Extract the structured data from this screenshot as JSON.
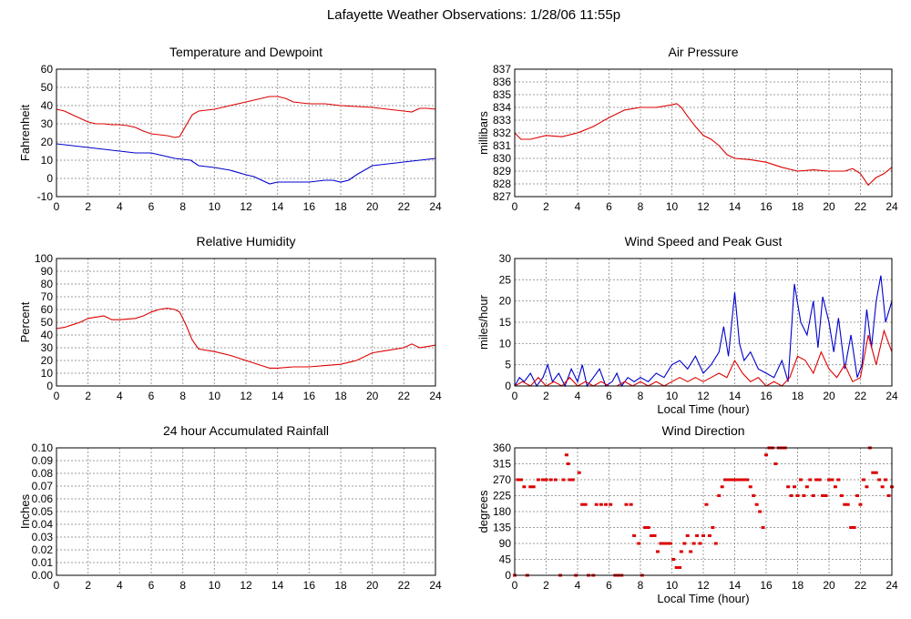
{
  "page": {
    "title": "Lafayette Weather Observations: 1/28/06 11:55p"
  },
  "colors": {
    "grid": "#9e9e9e",
    "red": "#dd0000",
    "blue": "#0000cc",
    "frame": "#000000"
  },
  "chart_data": [
    {
      "id": "temp",
      "type": "line",
      "title": "Temperature and Dewpoint",
      "xlabel": "",
      "ylabel": "Fahrenheit",
      "xlim": [
        0,
        24
      ],
      "ylim": [
        -10,
        60
      ],
      "xticks": [
        0,
        2,
        4,
        6,
        8,
        10,
        12,
        14,
        16,
        18,
        20,
        22,
        24
      ],
      "yticks": [
        -10,
        0,
        10,
        20,
        30,
        40,
        50,
        60
      ],
      "grid": true,
      "series": [
        {
          "color": "red",
          "x": [
            0,
            0.5,
            1,
            1.5,
            2,
            2.5,
            3,
            3.5,
            4,
            4.5,
            5,
            5.5,
            6,
            6.5,
            7,
            7.5,
            7.8,
            8.2,
            8.6,
            9,
            9.5,
            10,
            11,
            12,
            13,
            13.5,
            14,
            14.5,
            15,
            16,
            17,
            18,
            19,
            20,
            21,
            22,
            22.5,
            23,
            23.5,
            24
          ],
          "y": [
            38,
            37,
            35,
            33,
            31,
            30,
            30,
            29.5,
            29.5,
            29,
            28,
            26,
            24.5,
            24,
            23.5,
            22.5,
            23,
            29,
            35,
            37,
            37.5,
            38,
            40,
            42,
            44,
            45,
            45,
            44,
            42,
            41,
            41,
            40,
            39.5,
            39,
            38,
            37,
            36.5,
            38.5,
            38.5,
            38
          ]
        },
        {
          "color": "blue",
          "x": [
            0,
            1,
            2,
            3,
            4,
            5,
            6,
            7,
            7.5,
            8,
            8.5,
            9,
            10,
            11,
            12,
            12.5,
            13,
            13.5,
            14,
            15,
            16,
            17,
            17.5,
            18,
            18.5,
            19,
            20,
            21,
            22,
            23,
            24
          ],
          "y": [
            19,
            18,
            17,
            16,
            15,
            14,
            14,
            12,
            11,
            10.5,
            10,
            7,
            6,
            4.5,
            2,
            1,
            -1,
            -3,
            -2,
            -2,
            -2,
            -1,
            -1,
            -2,
            -1,
            2,
            7,
            8,
            9,
            10,
            11
          ]
        }
      ]
    },
    {
      "id": "pressure",
      "type": "line",
      "title": "Air Pressure",
      "xlabel": "",
      "ylabel": "millibars",
      "xlim": [
        0,
        24
      ],
      "ylim": [
        827,
        837
      ],
      "xticks": [
        0,
        2,
        4,
        6,
        8,
        10,
        12,
        14,
        16,
        18,
        20,
        22,
        24
      ],
      "yticks": [
        827,
        828,
        829,
        830,
        831,
        832,
        833,
        834,
        835,
        836,
        837
      ],
      "grid": true,
      "series": [
        {
          "color": "red",
          "x": [
            0,
            0.4,
            1,
            2,
            3,
            4,
            5,
            6,
            7,
            8,
            9,
            10,
            10.3,
            10.6,
            11,
            11.5,
            12,
            12.5,
            13,
            13.5,
            14,
            15,
            16,
            17,
            18,
            19,
            20,
            21,
            21.5,
            22,
            22.5,
            23,
            23.5,
            24
          ],
          "y": [
            832,
            831.5,
            831.5,
            831.8,
            831.7,
            832,
            832.5,
            833.2,
            833.8,
            834,
            834,
            834.2,
            834.3,
            834,
            833.3,
            832.5,
            831.8,
            831.5,
            831,
            830.3,
            830,
            829.9,
            829.7,
            829.3,
            829,
            829.1,
            829,
            829,
            829.2,
            828.8,
            827.9,
            828.5,
            828.8,
            829.3
          ]
        }
      ]
    },
    {
      "id": "humidity",
      "type": "line",
      "title": "Relative Humidity",
      "xlabel": "",
      "ylabel": "Percent",
      "xlim": [
        0,
        24
      ],
      "ylim": [
        0,
        100
      ],
      "xticks": [
        0,
        2,
        4,
        6,
        8,
        10,
        12,
        14,
        16,
        18,
        20,
        22,
        24
      ],
      "yticks": [
        0,
        10,
        20,
        30,
        40,
        50,
        60,
        70,
        80,
        90,
        100
      ],
      "grid": true,
      "series": [
        {
          "color": "red",
          "x": [
            0,
            0.5,
            1,
            1.5,
            2,
            2.5,
            3,
            3.5,
            4,
            5,
            5.5,
            6,
            6.5,
            7,
            7.5,
            7.8,
            8.2,
            8.6,
            9,
            10,
            11,
            12,
            13,
            13.5,
            14,
            15,
            16,
            17,
            18,
            19,
            20,
            21,
            22,
            22.5,
            23,
            24
          ],
          "y": [
            45,
            46,
            48,
            50,
            53,
            54,
            55,
            52,
            52,
            53,
            55,
            58,
            60,
            61,
            60,
            58,
            48,
            36,
            29,
            27,
            24,
            20,
            16,
            14,
            14,
            15,
            15,
            16,
            17,
            20,
            26,
            28,
            30,
            33,
            30,
            32
          ]
        }
      ]
    },
    {
      "id": "wind",
      "type": "line",
      "title": "Wind Speed and Peak Gust",
      "xlabel": "Local Time (hour)",
      "ylabel": "miles/hour",
      "xlim": [
        0,
        24
      ],
      "ylim": [
        0,
        30
      ],
      "xticks": [
        0,
        2,
        4,
        6,
        8,
        10,
        12,
        14,
        16,
        18,
        20,
        22,
        24
      ],
      "yticks": [
        0,
        5,
        10,
        15,
        20,
        25,
        30
      ],
      "grid": true,
      "series": [
        {
          "color": "blue",
          "x": [
            0,
            0.3,
            0.6,
            1,
            1.4,
            1.8,
            2.1,
            2.4,
            2.8,
            3.2,
            3.6,
            4,
            4.3,
            4.6,
            5,
            5.4,
            5.8,
            6.2,
            6.5,
            6.8,
            7.2,
            7.6,
            8,
            8.5,
            9,
            9.5,
            10,
            10.5,
            11,
            11.5,
            12,
            12.5,
            13,
            13.3,
            13.6,
            14,
            14.3,
            14.6,
            15,
            15.5,
            16,
            16.5,
            17,
            17.4,
            17.8,
            18.2,
            18.6,
            19,
            19.3,
            19.6,
            20,
            20.3,
            20.6,
            21,
            21.4,
            21.8,
            22.1,
            22.4,
            22.7,
            23,
            23.3,
            23.6,
            24
          ],
          "y": [
            0,
            2,
            1,
            3,
            0,
            2,
            5,
            1,
            3,
            0,
            4,
            1,
            5,
            0,
            2,
            4,
            0,
            1,
            3,
            0,
            2,
            1,
            2,
            1,
            3,
            2,
            5,
            6,
            4,
            7,
            3,
            5,
            8,
            14,
            7,
            22,
            10,
            6,
            8,
            4,
            3,
            2,
            6,
            1,
            24,
            15,
            12,
            20,
            9,
            21,
            15,
            8,
            16,
            4,
            12,
            2,
            5,
            18,
            9,
            20,
            26,
            15,
            20
          ]
        },
        {
          "color": "red",
          "x": [
            0,
            0.5,
            1,
            1.5,
            2,
            2.5,
            3,
            3.5,
            4,
            4.5,
            5,
            5.5,
            6,
            6.5,
            7,
            7.5,
            8,
            8.5,
            9,
            9.5,
            10,
            10.5,
            11,
            11.5,
            12,
            12.5,
            13,
            13.5,
            14,
            14.5,
            15,
            15.5,
            16,
            16.5,
            17,
            17.5,
            18,
            18.5,
            19,
            19.5,
            20,
            20.5,
            21,
            21.5,
            22,
            22.5,
            23,
            23.5,
            24
          ],
          "y": [
            0,
            1,
            0,
            2,
            0,
            1,
            0,
            2,
            0,
            1,
            0,
            1,
            0,
            0,
            1,
            0,
            1,
            0,
            1,
            0,
            1,
            2,
            1,
            2,
            1,
            2,
            3,
            2,
            6,
            3,
            1,
            2,
            0,
            1,
            0,
            2,
            7,
            6,
            3,
            8,
            4,
            2,
            5,
            1,
            2,
            12,
            5,
            13,
            8
          ]
        }
      ]
    },
    {
      "id": "rain",
      "type": "line",
      "title": "24 hour Accumulated Rainfall",
      "xlabel": "",
      "ylabel": "Inches",
      "xlim": [
        0,
        24
      ],
      "ylim": [
        0,
        0.1
      ],
      "xticks": [
        0,
        2,
        4,
        6,
        8,
        10,
        12,
        14,
        16,
        18,
        20,
        22,
        24
      ],
      "yticks": [
        "0.00",
        "0.01",
        "0.02",
        "0.03",
        "0.04",
        "0.05",
        "0.06",
        "0.07",
        "0.08",
        "0.09",
        "0.10"
      ],
      "grid": true,
      "series": [
        {
          "color": "red",
          "x": [
            0,
            24
          ],
          "y": [
            0,
            0
          ]
        }
      ]
    },
    {
      "id": "dir",
      "type": "scatter",
      "title": "Wind Direction",
      "xlabel": "Local Time (hour)",
      "ylabel": "degrees",
      "xlim": [
        0,
        24
      ],
      "ylim": [
        0,
        360
      ],
      "xticks": [
        0,
        2,
        4,
        6,
        8,
        10,
        12,
        14,
        16,
        18,
        20,
        22,
        24
      ],
      "yticks": [
        0,
        45,
        90,
        135,
        180,
        225,
        270,
        315,
        360
      ],
      "grid": true,
      "series": [
        {
          "color": "red",
          "x": [
            0,
            0.2,
            0.4,
            0.6,
            0.8,
            1,
            1.2,
            1.5,
            1.8,
            2,
            2.3,
            2.6,
            2.9,
            3.1,
            3.3,
            3.4,
            3.5,
            3.7,
            3.9,
            4.1,
            4.3,
            4.5,
            4.7,
            5,
            5.2,
            5.5,
            5.8,
            6.1,
            6.4,
            6.6,
            6.8,
            7.1,
            7.4,
            7.6,
            7.9,
            8.1,
            8.3,
            8.5,
            8.7,
            8.9,
            9.1,
            9.3,
            9.5,
            9.7,
            9.9,
            10.1,
            10.3,
            10.5,
            10.6,
            10.8,
            11,
            11.2,
            11.4,
            11.6,
            11.8,
            12,
            12.2,
            12.4,
            12.6,
            12.8,
            13,
            13.2,
            13.4,
            13.6,
            13.8,
            14,
            14.2,
            14.4,
            14.6,
            14.8,
            15,
            15.2,
            15.4,
            15.6,
            15.8,
            16,
            16.2,
            16.4,
            16.6,
            16.8,
            17,
            17.2,
            17.4,
            17.6,
            17.8,
            18,
            18.2,
            18.4,
            18.6,
            18.8,
            19,
            19.2,
            19.4,
            19.6,
            19.8,
            20,
            20.2,
            20.4,
            20.6,
            20.8,
            21,
            21.2,
            21.4,
            21.6,
            21.8,
            22,
            22.2,
            22.4,
            22.6,
            22.8,
            23,
            23.2,
            23.4,
            23.6,
            23.8,
            24
          ],
          "y": [
            0,
            270,
            270,
            250,
            0,
            250,
            250,
            270,
            270,
            270,
            270,
            270,
            0,
            270,
            340,
            315,
            270,
            270,
            0,
            290,
            200,
            200,
            0,
            0,
            200,
            200,
            200,
            200,
            0,
            0,
            0,
            200,
            200,
            112,
            90,
            0,
            135,
            135,
            112,
            112,
            67,
            90,
            90,
            90,
            90,
            45,
            22,
            22,
            67,
            90,
            112,
            67,
            90,
            112,
            90,
            112,
            200,
            112,
            135,
            90,
            225,
            250,
            270,
            270,
            270,
            270,
            270,
            270,
            270,
            270,
            250,
            225,
            200,
            180,
            135,
            340,
            360,
            360,
            315,
            360,
            360,
            360,
            250,
            225,
            250,
            225,
            270,
            225,
            250,
            270,
            225,
            270,
            270,
            225,
            225,
            270,
            270,
            250,
            270,
            225,
            200,
            200,
            135,
            135,
            225,
            200,
            270,
            250,
            360,
            290,
            290,
            270,
            250,
            270,
            225,
            250
          ]
        }
      ]
    }
  ]
}
